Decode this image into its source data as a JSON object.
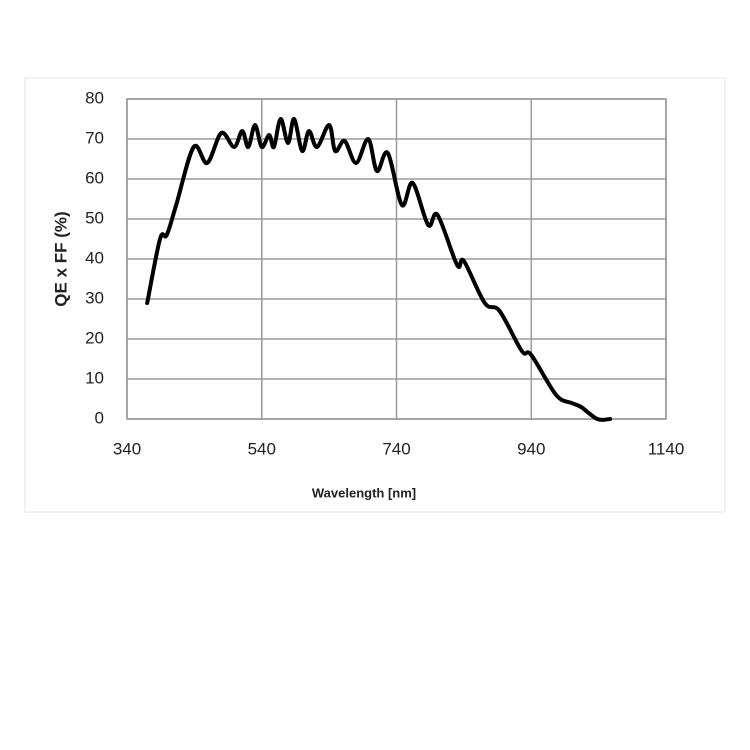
{
  "chart_data": {
    "type": "line",
    "ylabel": "QE x FF (%)",
    "xlabel": "Wavelength [nm]",
    "x": [
      370,
      389,
      399,
      413,
      439,
      459,
      480,
      499,
      511,
      520,
      530,
      540,
      551,
      558,
      568,
      579,
      588,
      600,
      610,
      622,
      640,
      649,
      663,
      680,
      698,
      711,
      727,
      748,
      764,
      787,
      801,
      830,
      840,
      871,
      893,
      926,
      940,
      977,
      1000,
      1014,
      1038,
      1057
    ],
    "series": [
      {
        "name": "QE x FF",
        "color": "#000000",
        "values": [
          29,
          45,
          46,
          53.5,
          68,
          64,
          71.5,
          68,
          72,
          68,
          73.5,
          68,
          71,
          68,
          75,
          69,
          75,
          67,
          72,
          68,
          73.5,
          67,
          69.5,
          64,
          70,
          62,
          66.5,
          53.5,
          59,
          48.5,
          51,
          38.5,
          39.5,
          29,
          27,
          17,
          16,
          6,
          4,
          3,
          0,
          0
        ]
      }
    ],
    "xlim": [
      340,
      1140
    ],
    "xticks": [
      340,
      540,
      740,
      940,
      1140
    ],
    "ylim": [
      0,
      80
    ],
    "yticks": [
      0,
      10,
      20,
      30,
      40,
      50,
      60,
      70,
      80
    ],
    "grid": true
  }
}
